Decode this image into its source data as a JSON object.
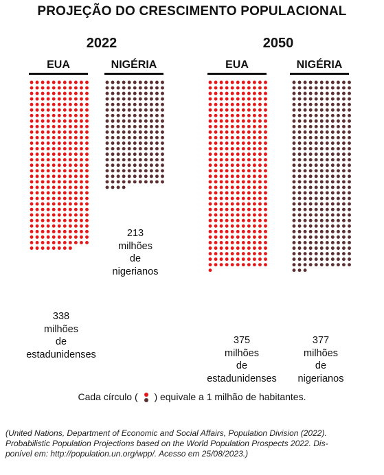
{
  "title": "PROJEÇÃO DO CRESCIMENTO POPULACIONAL",
  "legend": {
    "prefix": "Cada círculo (",
    "suffix": ") equivale a 1 milhão de habitantes.",
    "colors": [
      "#e41a1a",
      "#5a3030"
    ]
  },
  "source": {
    "line1": "(United Nations, Department of Economic and Social Affairs, Population Division (2022).",
    "line2": "Probabilistic Population Projections based on the World Population Prospects 2022. Dis-",
    "line3": "ponível em: http://population.un.org/wpp/. Acesso em 25/08/2023.)"
  },
  "chart_data": {
    "type": "dot-matrix",
    "unit_per_dot": 1,
    "groups": [
      {
        "year": "2022",
        "bars": [
          {
            "country": "EUA",
            "value": 338,
            "color": "#e41a1a",
            "label": [
              "338",
              "milhões",
              "de",
              "estadunidenses"
            ]
          },
          {
            "country": "NIGÉRIA",
            "value": 213,
            "color": "#5a3030",
            "label": [
              "213",
              "milhões",
              "de",
              "nigerianos"
            ]
          }
        ]
      },
      {
        "year": "2050",
        "bars": [
          {
            "country": "EUA",
            "value": 375,
            "color": "#e41a1a",
            "label": [
              "375",
              "milhões",
              "de",
              "estadunidenses"
            ]
          },
          {
            "country": "NIGÉRIA",
            "value": 377,
            "color": "#5a3030",
            "label": [
              "377",
              "milhões",
              "de",
              "nigerianos"
            ]
          }
        ]
      }
    ]
  }
}
